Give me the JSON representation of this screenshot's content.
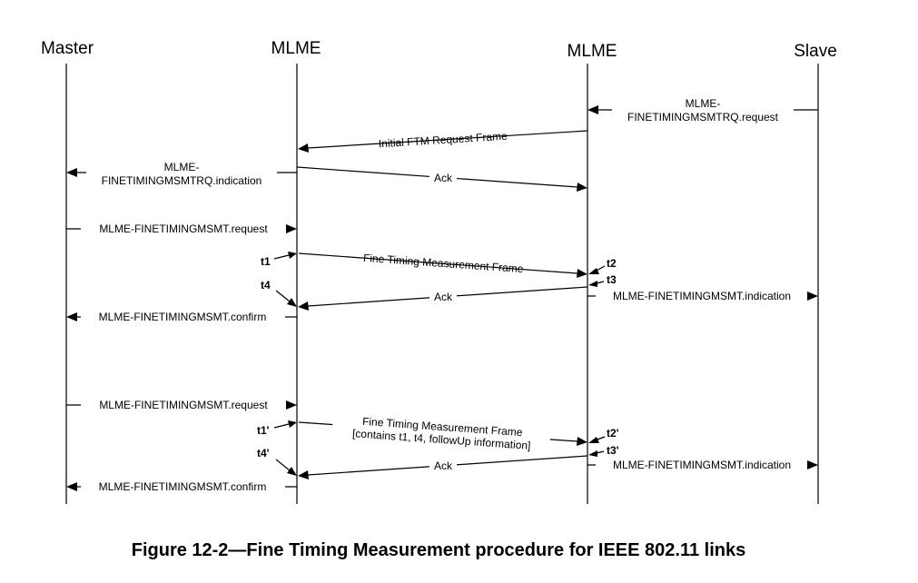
{
  "headers": {
    "master": "Master",
    "mlme_left": "MLME",
    "mlme_right": "MLME",
    "slave": "Slave"
  },
  "messages": {
    "slave_request_line1": "MLME-",
    "slave_request_line2": "FINETIMINGMSMTRQ.request",
    "initial_ftm_request": "Initial FTM Request Frame",
    "master_indication_line1": "MLME-",
    "master_indication_line2": "FINETIMINGMSMTRQ.indication",
    "ack_1": "Ack",
    "msmt_request_1": "MLME-FINETIMINGMSMT.request",
    "ftm_frame_1": "Fine Timing Measurement Frame",
    "ack_2": "Ack",
    "msmt_indication_1": "MLME-FINETIMINGMSMT.indication",
    "msmt_confirm_1": "MLME-FINETIMINGMSMT.confirm",
    "msmt_request_2": "MLME-FINETIMINGMSMT.request",
    "ftm_frame_2_line1": "Fine Timing Measurement Frame",
    "ftm_frame_2_line2": "[contains t1, t4, followUp information]",
    "ack_3": "Ack",
    "msmt_indication_2": "MLME-FINETIMINGMSMT.indication",
    "msmt_confirm_2": "MLME-FINETIMINGMSMT.confirm"
  },
  "timestamps": {
    "t1": "t1",
    "t2": "t2",
    "t3": "t3",
    "t4": "t4",
    "t1p": "t1'",
    "t2p": "t2'",
    "t3p": "t3'",
    "t4p": "t4'"
  },
  "caption": "Figure 12-2—Fine Timing Measurement procedure for IEEE 802.11 links"
}
